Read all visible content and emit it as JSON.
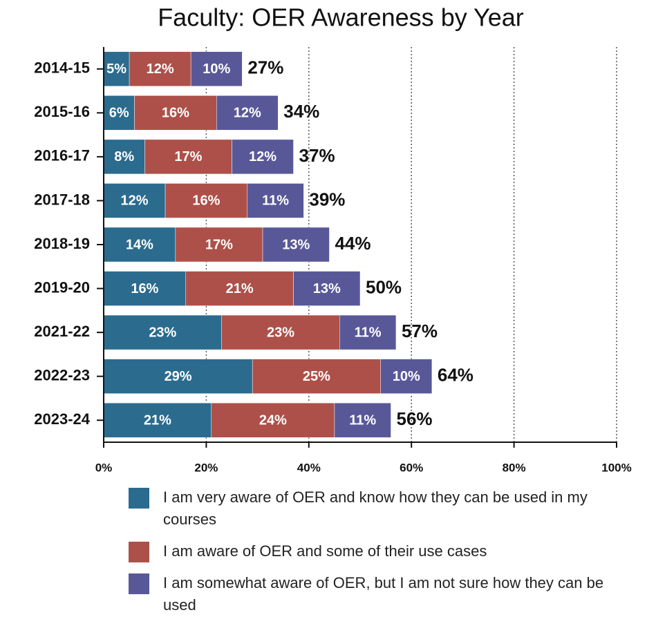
{
  "chart_data": {
    "type": "stacked_barh",
    "title": "Faculty: OER Awareness by Year",
    "categories": [
      "2014-15",
      "2015-16",
      "2016-17",
      "2017-18",
      "2018-19",
      "2019-20",
      "2021-22",
      "2022-23",
      "2023-24"
    ],
    "series": [
      {
        "name": "I am very aware of OER and know how they can be used in my courses",
        "color": "#2b6b8e",
        "values": [
          5,
          6,
          8,
          12,
          14,
          16,
          23,
          29,
          21
        ],
        "value_labels": [
          "5%",
          "6%",
          "8%",
          "12%",
          "14%",
          "16%",
          "23%",
          "29%",
          "21%"
        ]
      },
      {
        "name": "I am aware of OER and some of their use cases",
        "color": "#ad5049",
        "values": [
          12,
          16,
          17,
          16,
          17,
          21,
          23,
          25,
          24
        ],
        "value_labels": [
          "12%",
          "16%",
          "17%",
          "16%",
          "17%",
          "21%",
          "23%",
          "25%",
          "24%"
        ]
      },
      {
        "name": "I am somewhat aware of OER, but I am not sure how they can be used",
        "color": "#585899",
        "values": [
          10,
          12,
          12,
          11,
          13,
          13,
          11,
          10,
          11
        ],
        "value_labels": [
          "10%",
          "12%",
          "12%",
          "11%",
          "13%",
          "13%",
          "11%",
          "10%",
          "11%"
        ]
      }
    ],
    "totals": [
      27,
      34,
      37,
      39,
      44,
      50,
      57,
      64,
      56
    ],
    "total_labels": [
      "27%",
      "34%",
      "37%",
      "39%",
      "44%",
      "50%",
      "57%",
      "64%",
      "56%"
    ],
    "xlim": [
      0,
      100
    ],
    "xticks": [
      {
        "value": 0,
        "label": "0%"
      },
      {
        "value": 20,
        "label": "20%"
      },
      {
        "value": 40,
        "label": "40%"
      },
      {
        "value": 60,
        "label": "60%"
      },
      {
        "value": 80,
        "label": "80%"
      },
      {
        "value": 100,
        "label": "100%"
      }
    ],
    "grid": true
  }
}
